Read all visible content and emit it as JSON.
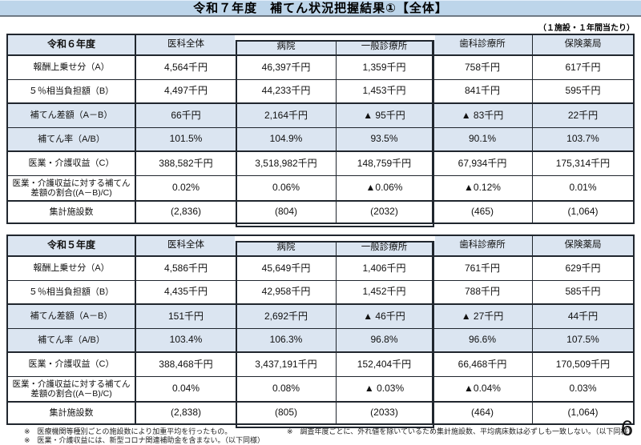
{
  "page": {
    "title": "令和７年度　補てん状況把握結果①【全体】",
    "unit_note": "（１施設・１年間当たり）",
    "page_number": "6"
  },
  "columns": [
    "医科全体",
    "病院",
    "一般診療所",
    "歯科診療所",
    "保険薬局"
  ],
  "row_labels": [
    "報酬上乗せ分（A）",
    "５％相当負担額（B）",
    "補てん差額（A－B）",
    "補てん率（A/B）",
    "医業・介護収益（C）",
    "医業・介護収益に対する補てん\n差額の割合((A－B)/C)",
    "集計施設数"
  ],
  "tables": [
    {
      "year": "令和６年度",
      "rows": [
        [
          "4,564千円",
          "46,397千円",
          "1,359千円",
          "758千円",
          "617千円"
        ],
        [
          "4,497千円",
          "44,233千円",
          "1,453千円",
          "841千円",
          "595千円"
        ],
        [
          "66千円",
          "2,164千円",
          "▲ 95千円",
          "▲ 83千円",
          "22千円"
        ],
        [
          "101.5%",
          "104.9%",
          "93.5%",
          "90.1%",
          "103.7%"
        ],
        [
          "388,582千円",
          "3,518,982千円",
          "148,759千円",
          "67,934千円",
          "175,314千円"
        ],
        [
          "0.02%",
          "0.06%",
          "▲0.06%",
          "▲0.12%",
          "0.01%"
        ],
        [
          "(2,836)",
          "(804)",
          "(2032)",
          "(465)",
          "(1,064)"
        ]
      ]
    },
    {
      "year": "令和５年度",
      "rows": [
        [
          "4,586千円",
          "45,649千円",
          "1,406千円",
          "761千円",
          "629千円"
        ],
        [
          "4,435千円",
          "42,958千円",
          "1,452千円",
          "788千円",
          "585千円"
        ],
        [
          "151千円",
          "2,692千円",
          "▲ 46千円",
          "▲ 27千円",
          "44千円"
        ],
        [
          "103.4%",
          "106.3%",
          "96.8%",
          "96.6%",
          "107.5%"
        ],
        [
          "388,468千円",
          "3,437,191千円",
          "152,404千円",
          "66,468千円",
          "170,509千円"
        ],
        [
          "0.04%",
          "0.08%",
          "▲ 0.03%",
          "▲0.04%",
          "0.03%"
        ],
        [
          "(2,838)",
          "(805)",
          "(2033)",
          "(464)",
          "(1,064)"
        ]
      ]
    }
  ],
  "footnotes": {
    "left": [
      "※　医療機関等種別ごとの施設数により加重平均を行ったもの。",
      "※　医業・介護収益には、新型コロナ関連補助金を含まない。（以下同様）"
    ],
    "right": [
      "※　調査年度ごとに、外れ値を除いているため集計施設数、平均病床数は必ずしも一致しない。（以下同様）"
    ]
  },
  "colors": {
    "title_bar_fill": "#bdd5ea",
    "table_header_fill": "#dbe5f1",
    "border": "#20262e"
  }
}
